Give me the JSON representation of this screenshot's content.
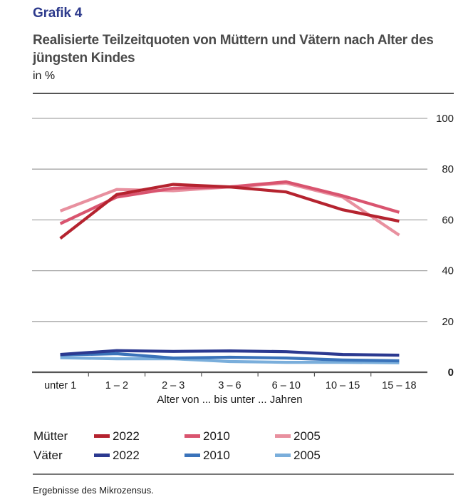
{
  "header": {
    "kicker": "Grafik 4",
    "title": "Realisierte Teilzeitquoten von Müttern und Vätern nach Alter des jüngsten Kindes",
    "unit": "in %"
  },
  "footnote": "Ergebnisse des Mikrozensus.",
  "legend": {
    "groups": [
      {
        "label": "Mütter",
        "items": [
          {
            "label": "2022",
            "color": "#b5232f"
          },
          {
            "label": "2010",
            "color": "#d9546f"
          },
          {
            "label": "2005",
            "color": "#e8909f"
          }
        ]
      },
      {
        "label": "Väter",
        "items": [
          {
            "label": "2022",
            "color": "#2b3990"
          },
          {
            "label": "2010",
            "color": "#3a73ba"
          },
          {
            "label": "2005",
            "color": "#7aaedb"
          }
        ]
      }
    ]
  },
  "chart_data": {
    "type": "line",
    "title": "Realisierte Teilzeitquoten von Müttern und Vätern nach Alter des jüngsten Kindes",
    "subtitle": "in %",
    "xlabel": "Alter von ... bis unter ... Jahren",
    "ylabel": "",
    "categories": [
      "unter 1",
      "1 – 2",
      "2 – 3",
      "3 – 6",
      "6 – 10",
      "10 – 15",
      "15 – 18"
    ],
    "ylim": [
      0,
      100
    ],
    "yticks": [
      0,
      20,
      40,
      60,
      80,
      100
    ],
    "grid": true,
    "legend_position": "bottom",
    "series": [
      {
        "name": "Mütter 2005",
        "group": "Mütter",
        "year": "2005",
        "color": "#e8909f",
        "values": [
          63.5,
          72.0,
          71.5,
          73.0,
          74.5,
          69.0,
          54.0
        ]
      },
      {
        "name": "Mütter 2010",
        "group": "Mütter",
        "year": "2010",
        "color": "#d9546f",
        "values": [
          58.5,
          69.0,
          72.5,
          73.0,
          75.0,
          69.5,
          63.0
        ]
      },
      {
        "name": "Mütter 2022",
        "group": "Mütter",
        "year": "2022",
        "color": "#b5232f",
        "values": [
          52.7,
          70.0,
          74.0,
          73.0,
          71.0,
          64.0,
          59.5
        ]
      },
      {
        "name": "Väter 2005",
        "group": "Väter",
        "year": "2005",
        "color": "#7aaedb",
        "values": [
          5.7,
          5.3,
          5.3,
          4.2,
          3.9,
          3.9,
          3.7
        ]
      },
      {
        "name": "Väter 2010",
        "group": "Väter",
        "year": "2010",
        "color": "#3a73ba",
        "values": [
          6.8,
          7.3,
          5.6,
          5.9,
          5.6,
          4.8,
          4.5
        ]
      },
      {
        "name": "Väter 2022",
        "group": "Väter",
        "year": "2022",
        "color": "#2b3990",
        "values": [
          7.0,
          8.5,
          8.2,
          8.4,
          8.1,
          7.0,
          6.7
        ]
      }
    ]
  }
}
